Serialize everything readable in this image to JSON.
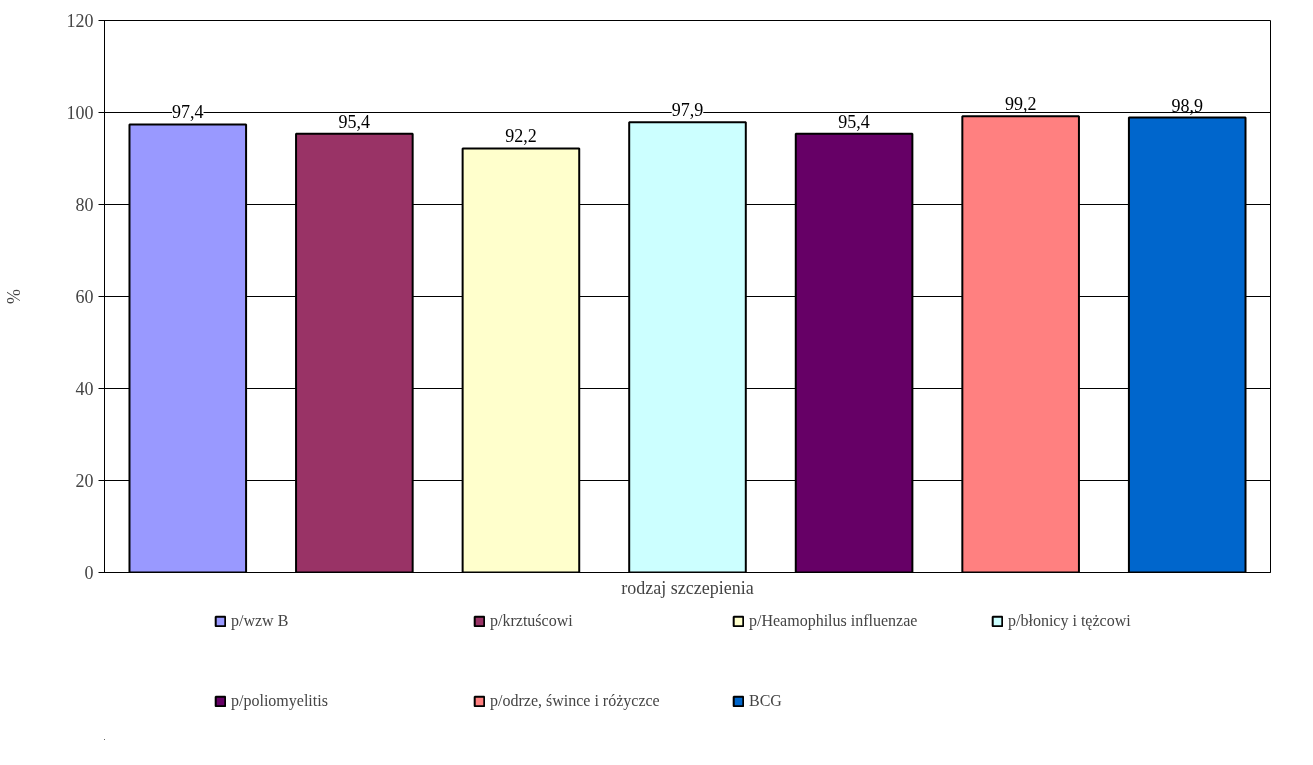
{
  "chart_data": {
    "type": "bar",
    "xlabel": "rodzaj szczepienia",
    "ylabel": "%",
    "categories": [
      null
    ],
    "series": [
      {
        "name": "p/wzw B",
        "color": "#9999ff",
        "values": [
          97.4
        ],
        "value_labels": [
          "97,4"
        ]
      },
      {
        "name": "p/krztuścowi",
        "color": "#993366",
        "values": [
          95.4
        ],
        "value_labels": [
          "95,4"
        ]
      },
      {
        "name": "p/Heamophilus influenzae",
        "color": "#ffffcc",
        "values": [
          92.2
        ],
        "value_labels": [
          "92,2"
        ]
      },
      {
        "name": "p/błonicy i tężcowi",
        "color": "#ccffff",
        "values": [
          97.9
        ],
        "value_labels": [
          "97,9"
        ]
      },
      {
        "name": "p/poliomyelitis",
        "color": "#660066",
        "values": [
          95.4
        ],
        "value_labels": [
          "95,4"
        ]
      },
      {
        "name": "p/odrze, śwince i różyczce",
        "color": "#ff8080",
        "values": [
          99.2
        ],
        "value_labels": [
          "99,2"
        ]
      },
      {
        "name": "BCG",
        "color": "#0066cc",
        "values": [
          98.9
        ],
        "value_labels": [
          "98,9"
        ]
      }
    ],
    "ylim": [
      0,
      120
    ],
    "yticks": [
      0,
      20,
      40,
      60,
      80,
      100,
      120
    ],
    "grid": "y",
    "legend": "bottom"
  }
}
